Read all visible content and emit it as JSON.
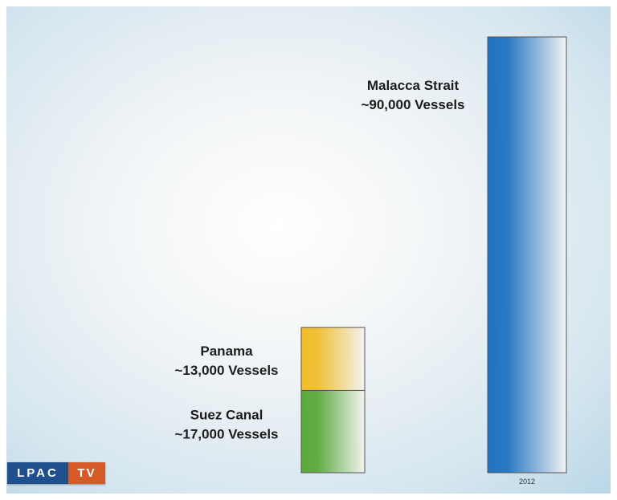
{
  "chart_data": {
    "type": "bar",
    "unit": "Vessels",
    "ylim": [
      0,
      90000
    ],
    "grid": false,
    "bars": [
      {
        "tick": "",
        "segments": [
          {
            "name": "Suez Canal",
            "value": 17000,
            "label_line1": "Suez Canal",
            "label_line2": "~17,000 Vessels",
            "color": "#5aa83a"
          },
          {
            "name": "Panama",
            "value": 13000,
            "label_line1": "Panama",
            "label_line2": "~13,000 Vessels",
            "color": "#f0bd2a"
          }
        ]
      },
      {
        "tick": "2012",
        "segments": [
          {
            "name": "Malacca Strait",
            "value": 90000,
            "label_line1": "Malacca Strait",
            "label_line2": "~90,000 Vessels",
            "color": "#1f73c2"
          }
        ]
      }
    ]
  },
  "logo": {
    "part1": "LPAC",
    "part2": "TV"
  }
}
